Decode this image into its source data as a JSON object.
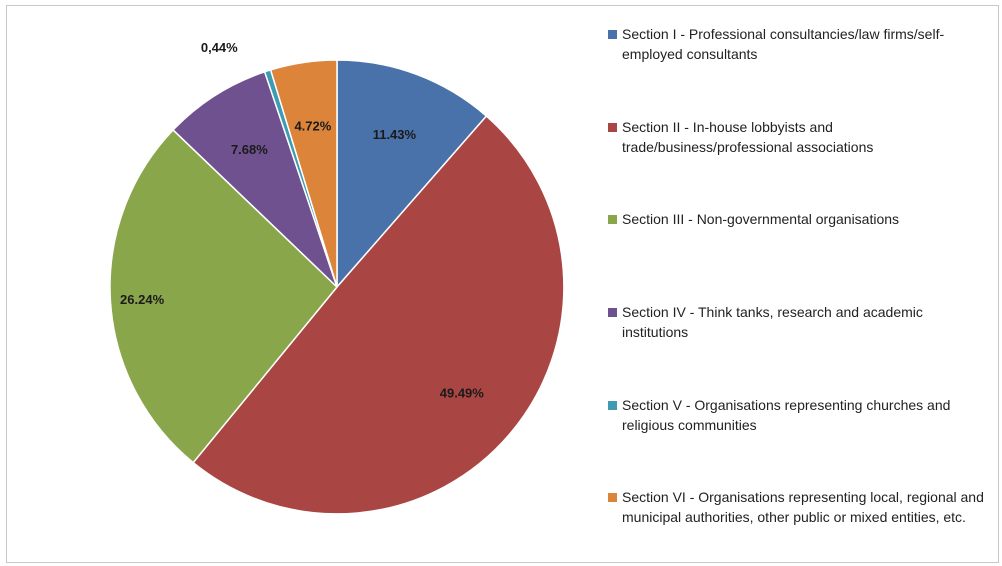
{
  "chart_data": {
    "type": "pie",
    "slices": [
      {
        "label": "Section I - Professional consultancies/law firms/self-employed consultants",
        "value": 11.43,
        "display": "11.43%",
        "color": "#4a72aa"
      },
      {
        "label": "Section II - In-house lobbyists and trade/business/professional associations",
        "value": 49.49,
        "display": "49.49%",
        "color": "#a94542"
      },
      {
        "label": "Section III - Non-governmental organisations",
        "value": 26.24,
        "display": "26.24%",
        "color": "#8aa64a"
      },
      {
        "label": "Section IV - Think tanks, research and academic institutions",
        "value": 7.68,
        "display": "7.68%",
        "color": "#6f5190"
      },
      {
        "label": "Section V - Organisations representing churches and religious communities",
        "value": 0.44,
        "display": "0,44%",
        "color": "#3e9bb2"
      },
      {
        "label": "Section VI - Organisations representing local, regional and municipal authorities, other public or mixed entities, etc.",
        "value": 4.72,
        "display": "4.72%",
        "color": "#dc8439"
      }
    ],
    "legend_position": "right"
  }
}
